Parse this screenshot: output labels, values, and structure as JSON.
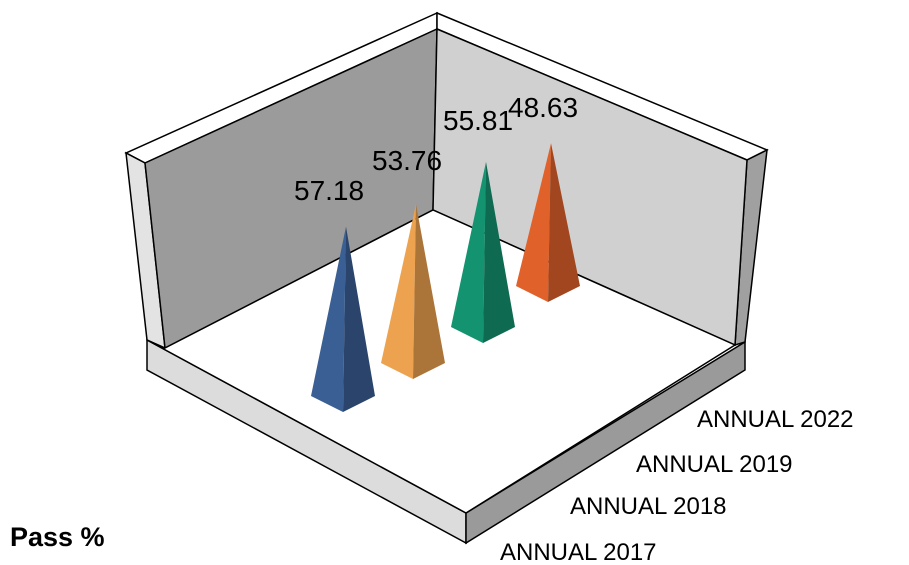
{
  "chart_data": {
    "type": "bar",
    "style": "3d-pyramid",
    "title": "Pass %",
    "categories": [
      "ANNUAL 2017",
      "ANNUAL 2018",
      "ANNUAL 2019",
      "ANNUAL 2022"
    ],
    "values": [
      57.18,
      53.76,
      55.81,
      48.63
    ],
    "colors": [
      "#3a5f94",
      "#eda24f",
      "#13936f",
      "#e0612a"
    ],
    "grid": false,
    "legend": "none"
  }
}
